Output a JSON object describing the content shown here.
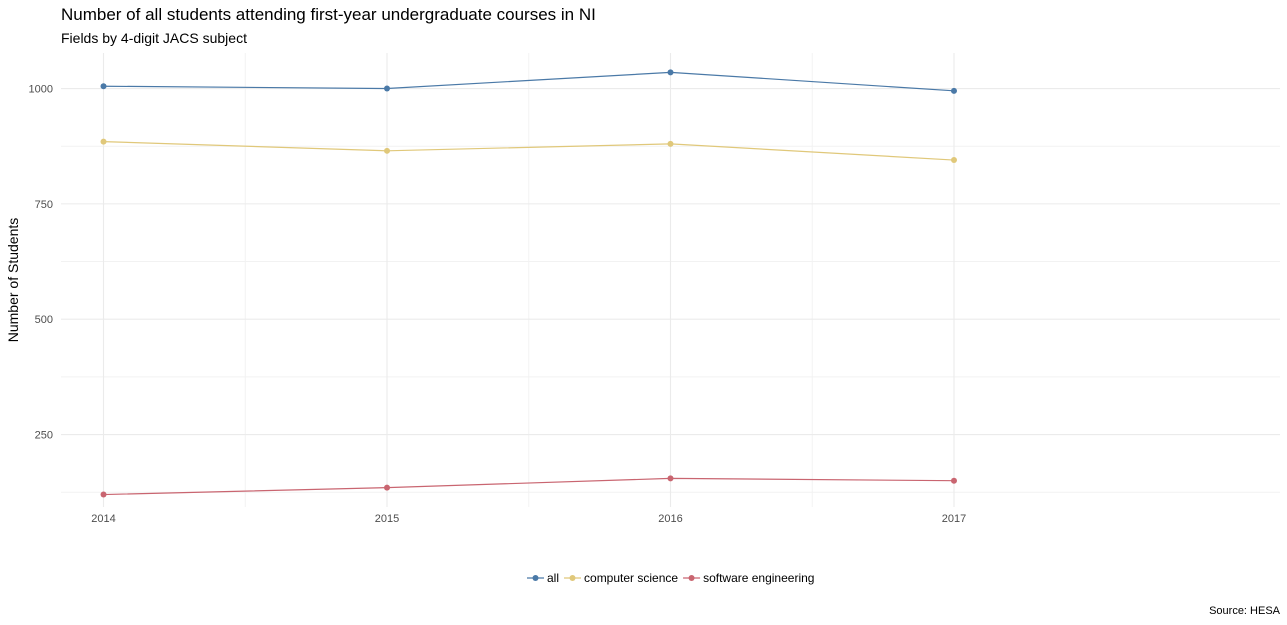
{
  "chart_data": {
    "type": "line",
    "title": "Number of all students attending first-year undergraduate courses in NI",
    "subtitle": "Fields by 4-digit JACS subject",
    "caption": "Source: HESA",
    "xlabel": "",
    "ylabel": "Number of Students",
    "x": [
      2014,
      2015,
      2016,
      2017
    ],
    "x_tick_labels": [
      "2014",
      "2015",
      "2016",
      "2017"
    ],
    "y_ticks": [
      250,
      500,
      750,
      1000
    ],
    "y_tick_labels": [
      "250",
      "500",
      "750",
      "1000"
    ],
    "xlim": [
      2013.85,
      2018.15
    ],
    "ylim": [
      93,
      1077
    ],
    "grid": true,
    "legend_position": "bottom",
    "series": [
      {
        "name": "all",
        "color": "#4a79a7",
        "values": [
          1005,
          1000,
          1035,
          995
        ]
      },
      {
        "name": "computer science",
        "color": "#e0c87a",
        "values": [
          885,
          865,
          880,
          845
        ]
      },
      {
        "name": "software engineering",
        "color": "#c96570",
        "values": [
          120,
          135,
          155,
          150
        ]
      }
    ]
  }
}
